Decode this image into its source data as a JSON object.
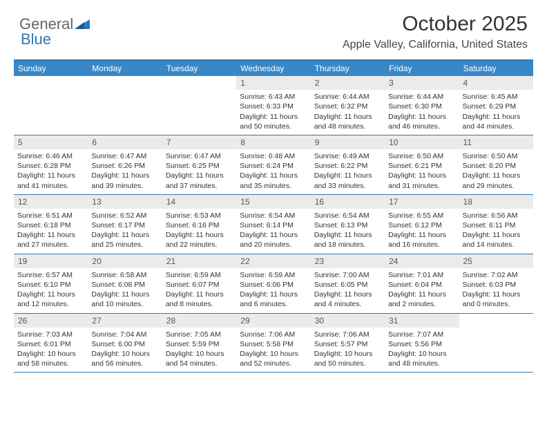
{
  "logo": {
    "text1": "General",
    "text2": "Blue"
  },
  "title": "October 2025",
  "location": "Apple Valley, California, United States",
  "colors": {
    "header_bar": "#3a87c8",
    "border": "#2e77b8",
    "day_num_bg": "#ebebeb",
    "text": "#333333"
  },
  "weekdays": [
    "Sunday",
    "Monday",
    "Tuesday",
    "Wednesday",
    "Thursday",
    "Friday",
    "Saturday"
  ],
  "weeks": [
    [
      {
        "empty": true
      },
      {
        "empty": true
      },
      {
        "empty": true
      },
      {
        "n": "1",
        "sr": "6:43 AM",
        "ss": "6:33 PM",
        "dl": "11 hours and 50 minutes."
      },
      {
        "n": "2",
        "sr": "6:44 AM",
        "ss": "6:32 PM",
        "dl": "11 hours and 48 minutes."
      },
      {
        "n": "3",
        "sr": "6:44 AM",
        "ss": "6:30 PM",
        "dl": "11 hours and 46 minutes."
      },
      {
        "n": "4",
        "sr": "6:45 AM",
        "ss": "6:29 PM",
        "dl": "11 hours and 44 minutes."
      }
    ],
    [
      {
        "n": "5",
        "sr": "6:46 AM",
        "ss": "6:28 PM",
        "dl": "11 hours and 41 minutes."
      },
      {
        "n": "6",
        "sr": "6:47 AM",
        "ss": "6:26 PM",
        "dl": "11 hours and 39 minutes."
      },
      {
        "n": "7",
        "sr": "6:47 AM",
        "ss": "6:25 PM",
        "dl": "11 hours and 37 minutes."
      },
      {
        "n": "8",
        "sr": "6:48 AM",
        "ss": "6:24 PM",
        "dl": "11 hours and 35 minutes."
      },
      {
        "n": "9",
        "sr": "6:49 AM",
        "ss": "6:22 PM",
        "dl": "11 hours and 33 minutes."
      },
      {
        "n": "10",
        "sr": "6:50 AM",
        "ss": "6:21 PM",
        "dl": "11 hours and 31 minutes."
      },
      {
        "n": "11",
        "sr": "6:50 AM",
        "ss": "6:20 PM",
        "dl": "11 hours and 29 minutes."
      }
    ],
    [
      {
        "n": "12",
        "sr": "6:51 AM",
        "ss": "6:18 PM",
        "dl": "11 hours and 27 minutes."
      },
      {
        "n": "13",
        "sr": "6:52 AM",
        "ss": "6:17 PM",
        "dl": "11 hours and 25 minutes."
      },
      {
        "n": "14",
        "sr": "6:53 AM",
        "ss": "6:16 PM",
        "dl": "11 hours and 22 minutes."
      },
      {
        "n": "15",
        "sr": "6:54 AM",
        "ss": "6:14 PM",
        "dl": "11 hours and 20 minutes."
      },
      {
        "n": "16",
        "sr": "6:54 AM",
        "ss": "6:13 PM",
        "dl": "11 hours and 18 minutes."
      },
      {
        "n": "17",
        "sr": "6:55 AM",
        "ss": "6:12 PM",
        "dl": "11 hours and 16 minutes."
      },
      {
        "n": "18",
        "sr": "6:56 AM",
        "ss": "6:11 PM",
        "dl": "11 hours and 14 minutes."
      }
    ],
    [
      {
        "n": "19",
        "sr": "6:57 AM",
        "ss": "6:10 PM",
        "dl": "11 hours and 12 minutes."
      },
      {
        "n": "20",
        "sr": "6:58 AM",
        "ss": "6:08 PM",
        "dl": "11 hours and 10 minutes."
      },
      {
        "n": "21",
        "sr": "6:59 AM",
        "ss": "6:07 PM",
        "dl": "11 hours and 8 minutes."
      },
      {
        "n": "22",
        "sr": "6:59 AM",
        "ss": "6:06 PM",
        "dl": "11 hours and 6 minutes."
      },
      {
        "n": "23",
        "sr": "7:00 AM",
        "ss": "6:05 PM",
        "dl": "11 hours and 4 minutes."
      },
      {
        "n": "24",
        "sr": "7:01 AM",
        "ss": "6:04 PM",
        "dl": "11 hours and 2 minutes."
      },
      {
        "n": "25",
        "sr": "7:02 AM",
        "ss": "6:03 PM",
        "dl": "11 hours and 0 minutes."
      }
    ],
    [
      {
        "n": "26",
        "sr": "7:03 AM",
        "ss": "6:01 PM",
        "dl": "10 hours and 58 minutes."
      },
      {
        "n": "27",
        "sr": "7:04 AM",
        "ss": "6:00 PM",
        "dl": "10 hours and 56 minutes."
      },
      {
        "n": "28",
        "sr": "7:05 AM",
        "ss": "5:59 PM",
        "dl": "10 hours and 54 minutes."
      },
      {
        "n": "29",
        "sr": "7:06 AM",
        "ss": "5:58 PM",
        "dl": "10 hours and 52 minutes."
      },
      {
        "n": "30",
        "sr": "7:06 AM",
        "ss": "5:57 PM",
        "dl": "10 hours and 50 minutes."
      },
      {
        "n": "31",
        "sr": "7:07 AM",
        "ss": "5:56 PM",
        "dl": "10 hours and 48 minutes."
      },
      {
        "empty": true
      }
    ]
  ],
  "labels": {
    "sunrise": "Sunrise:",
    "sunset": "Sunset:",
    "daylight": "Daylight:"
  }
}
